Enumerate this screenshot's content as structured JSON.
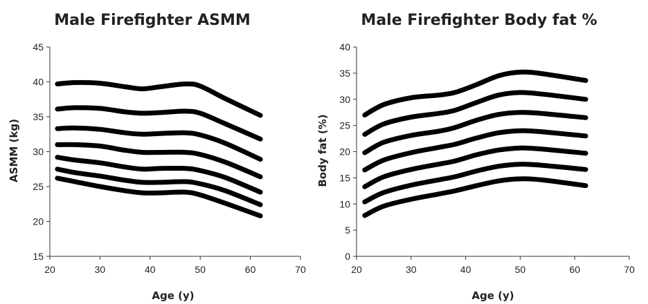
{
  "chart_data": [
    {
      "type": "line",
      "title": "Male Firefighter ASMM",
      "xlabel": "Age (y)",
      "ylabel": "ASMM (kg)",
      "xlim": [
        20,
        70
      ],
      "ylim": [
        15,
        45
      ],
      "xticks": [
        20,
        30,
        40,
        50,
        60,
        70
      ],
      "yticks": [
        15,
        20,
        25,
        30,
        35,
        40,
        45
      ],
      "grid": false,
      "legend": "none",
      "series": [
        {
          "x": [
            21.5,
            25,
            30,
            35,
            38.5,
            42,
            47,
            50,
            55,
            62
          ],
          "y": [
            39.7,
            39.9,
            39.8,
            39.3,
            39.0,
            39.3,
            39.7,
            39.4,
            37.6,
            35.2
          ]
        },
        {
          "x": [
            21.5,
            25,
            30,
            35,
            38.5,
            42,
            47,
            50,
            55,
            62
          ],
          "y": [
            36.1,
            36.3,
            36.2,
            35.7,
            35.5,
            35.6,
            35.8,
            35.5,
            34.0,
            31.8
          ]
        },
        {
          "x": [
            21.5,
            25,
            30,
            35,
            38.5,
            42,
            47,
            50,
            55,
            62
          ],
          "y": [
            33.3,
            33.4,
            33.2,
            32.7,
            32.5,
            32.6,
            32.7,
            32.4,
            31.2,
            28.9
          ]
        },
        {
          "x": [
            21.5,
            25,
            30,
            35,
            38.5,
            42,
            47,
            50,
            55,
            62
          ],
          "y": [
            31.0,
            31.0,
            30.8,
            30.2,
            29.9,
            29.9,
            29.9,
            29.6,
            28.5,
            26.4
          ]
        },
        {
          "x": [
            21.5,
            25,
            30,
            35,
            38.5,
            42,
            47,
            50,
            55,
            62
          ],
          "y": [
            29.2,
            28.8,
            28.4,
            27.8,
            27.5,
            27.6,
            27.6,
            27.3,
            26.3,
            24.2
          ]
        },
        {
          "x": [
            21.5,
            25,
            30,
            35,
            38.5,
            42,
            47,
            50,
            55,
            62
          ],
          "y": [
            27.5,
            27.0,
            26.5,
            25.9,
            25.6,
            25.6,
            25.7,
            25.4,
            24.4,
            22.4
          ]
        },
        {
          "x": [
            21.5,
            25,
            30,
            35,
            38.5,
            42,
            47,
            50,
            55,
            62
          ],
          "y": [
            26.2,
            25.7,
            25.0,
            24.4,
            24.1,
            24.1,
            24.2,
            23.8,
            22.6,
            20.8
          ]
        }
      ]
    },
    {
      "type": "line",
      "title": "Male Firefighter Body fat %",
      "xlabel": "Age (y)",
      "ylabel": "Body fat (%)",
      "xlim": [
        20,
        70
      ],
      "ylim": [
        0,
        40
      ],
      "xticks": [
        20,
        30,
        40,
        50,
        60,
        70
      ],
      "yticks": [
        0,
        5,
        10,
        15,
        20,
        25,
        30,
        35,
        40
      ],
      "grid": false,
      "legend": "none",
      "series": [
        {
          "x": [
            21.5,
            25,
            30,
            35,
            38,
            42,
            46,
            50,
            54,
            62
          ],
          "y": [
            27.0,
            29.0,
            30.3,
            30.8,
            31.3,
            32.8,
            34.5,
            35.2,
            34.9,
            33.6
          ]
        },
        {
          "x": [
            21.5,
            25,
            30,
            35,
            38,
            42,
            46,
            50,
            54,
            62
          ],
          "y": [
            23.3,
            25.3,
            26.6,
            27.3,
            27.9,
            29.4,
            30.8,
            31.3,
            31.0,
            30.0
          ]
        },
        {
          "x": [
            21.5,
            25,
            30,
            35,
            38,
            42,
            46,
            50,
            54,
            62
          ],
          "y": [
            19.8,
            21.8,
            23.1,
            23.9,
            24.6,
            26.0,
            27.1,
            27.5,
            27.3,
            26.5
          ]
        },
        {
          "x": [
            21.5,
            25,
            30,
            35,
            38,
            42,
            46,
            50,
            54,
            62
          ],
          "y": [
            16.5,
            18.4,
            19.8,
            20.8,
            21.4,
            22.6,
            23.6,
            24.0,
            23.8,
            23.0
          ]
        },
        {
          "x": [
            21.5,
            25,
            30,
            35,
            38,
            42,
            46,
            50,
            54,
            62
          ],
          "y": [
            13.3,
            15.2,
            16.6,
            17.6,
            18.2,
            19.4,
            20.3,
            20.7,
            20.5,
            19.7
          ]
        },
        {
          "x": [
            21.5,
            25,
            30,
            35,
            38,
            42,
            46,
            50,
            54,
            62
          ],
          "y": [
            10.4,
            12.2,
            13.6,
            14.6,
            15.2,
            16.3,
            17.2,
            17.6,
            17.4,
            16.6
          ]
        },
        {
          "x": [
            21.5,
            25,
            30,
            35,
            38,
            42,
            46,
            50,
            54,
            62
          ],
          "y": [
            7.8,
            9.6,
            10.9,
            11.9,
            12.5,
            13.5,
            14.4,
            14.8,
            14.6,
            13.5
          ]
        }
      ]
    }
  ]
}
